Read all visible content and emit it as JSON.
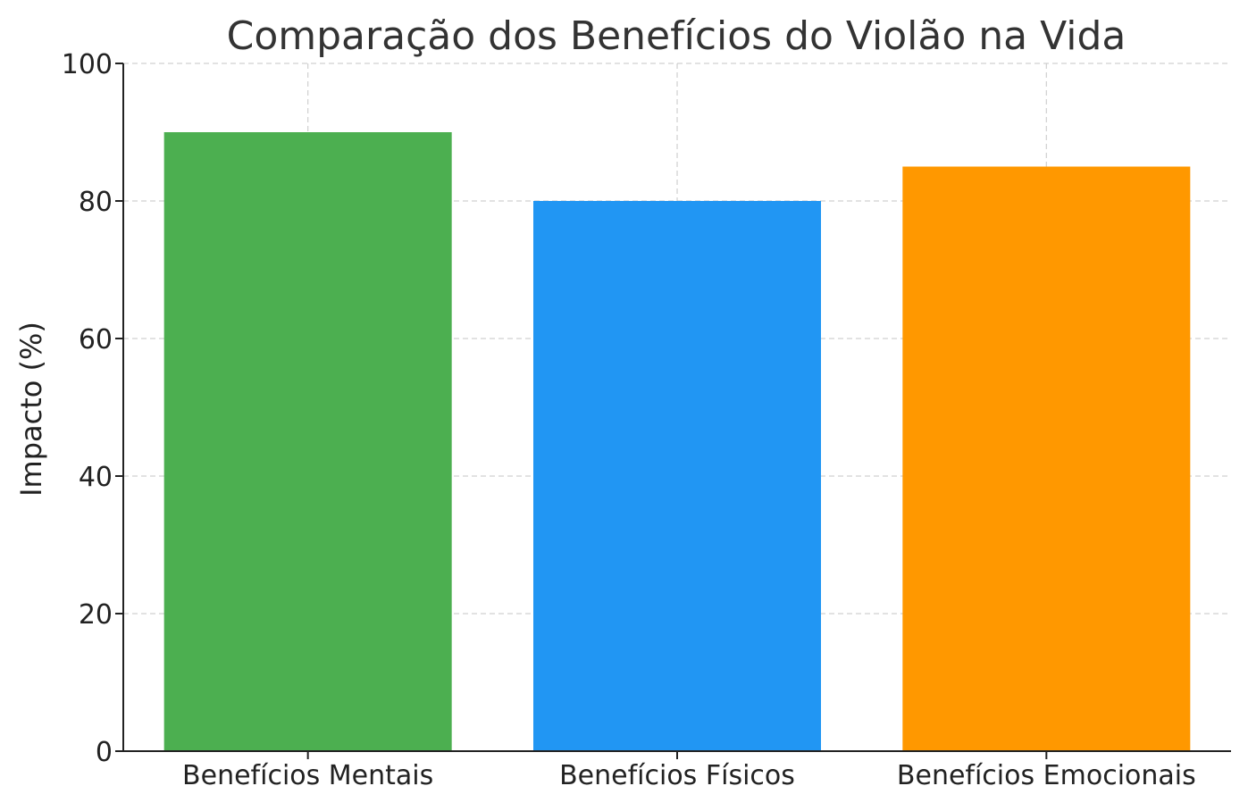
{
  "chart_data": {
    "type": "bar",
    "title": "Comparação dos Benefícios do Violão na Vida",
    "xlabel": "",
    "ylabel": "Impacto (%)",
    "categories": [
      "Benefícios Mentais",
      "Benefícios Físicos",
      "Benefícios Emocionais"
    ],
    "values": [
      90,
      80,
      85
    ],
    "colors": [
      "#4caf50",
      "#2196f3",
      "#ff9800"
    ],
    "ylim": [
      0,
      100
    ],
    "yticks": [
      0,
      20,
      40,
      60,
      80,
      100
    ],
    "grid": true,
    "grid_style": "dashed",
    "legend": "none"
  }
}
